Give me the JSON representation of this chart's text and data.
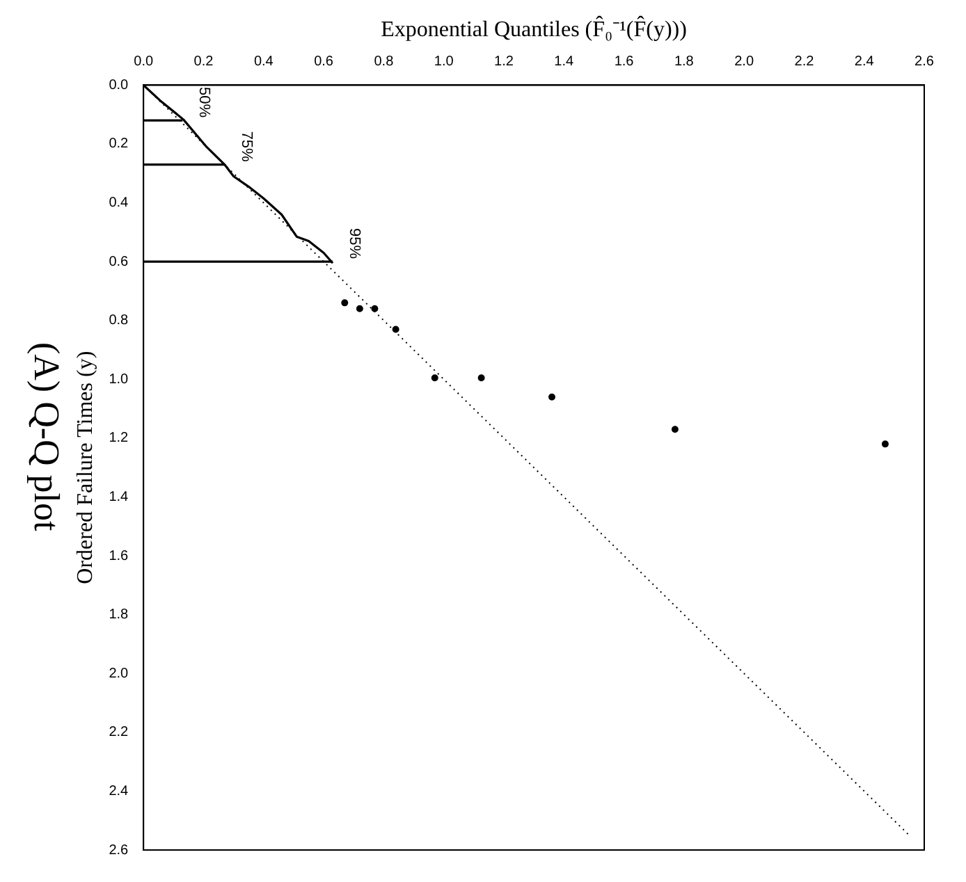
{
  "chart_data": {
    "type": "scatter",
    "title": "(A) Q-Q plot",
    "xlabel": "Exponential Quantiles (F̂₀⁻¹(F̂(y)))",
    "ylabel": "Ordered Failure Times (y)",
    "xlim": [
      0,
      2.6
    ],
    "xticks": [
      {
        "value": 0,
        "label": "0.0"
      },
      0.2,
      0.4,
      0.6,
      0.8,
      {
        "value": 1,
        "label": "1.0"
      },
      1.2,
      1.4,
      1.6,
      1.8,
      {
        "value": 2,
        "label": "2.0"
      },
      2.2,
      2.4,
      2.6
    ],
    "ylim": [
      2.6,
      0
    ],
    "yticks": [
      {
        "value": 0,
        "label": "0.0"
      },
      0.2,
      0.4,
      0.6,
      0.8,
      {
        "value": 1,
        "label": "1.0"
      },
      1.2,
      1.4,
      1.6,
      1.8,
      {
        "value": 2,
        "label": "2.0"
      },
      2.2,
      2.4,
      2.6
    ],
    "grid": false,
    "legend": false,
    "series": [
      {
        "type": "line",
        "color": "#000000",
        "line_style": "dotted",
        "marker": "none",
        "x": [
          0,
          2.55
        ],
        "values": [
          0,
          2.55
        ]
      },
      {
        "type": "line",
        "color": "#000000",
        "line_style": "solid",
        "marker": "none",
        "x": [
          0,
          0.13
        ],
        "values": [
          0.12,
          0.12
        ]
      },
      {
        "type": "line",
        "color": "#000000",
        "line_style": "solid",
        "marker": "none",
        "x": [
          0,
          0.27
        ],
        "values": [
          0.27,
          0.27
        ]
      },
      {
        "type": "line",
        "color": "#000000",
        "line_style": "solid",
        "marker": "none",
        "x": [
          0,
          0.63
        ],
        "values": [
          0.6,
          0.6
        ]
      },
      {
        "type": "line",
        "color": "#000000",
        "line_style": "solid",
        "marker": "none",
        "x": [
          0,
          0.055,
          0.133,
          0.21,
          0.27,
          0.3,
          0.35,
          0.4,
          0.46,
          0.51,
          0.55,
          0.6,
          0.63
        ],
        "values": [
          0,
          0.052,
          0.117,
          0.21,
          0.27,
          0.31,
          0.345,
          0.385,
          0.44,
          0.515,
          0.53,
          0.57,
          0.605
        ]
      },
      {
        "color": "#000000",
        "marker": "circle",
        "x": [
          0.67,
          0.72,
          0.77,
          0.84,
          0.97,
          1.125,
          1.36,
          1.77,
          2.47
        ],
        "values": [
          0.74,
          0.76,
          0.76,
          0.83,
          0.995,
          0.995,
          1.06,
          1.17,
          1.22
        ]
      }
    ],
    "annotations": [
      {
        "text": "50%",
        "x": 0.13,
        "y": 0.12
      },
      {
        "text": "75%",
        "x": 0.27,
        "y": 0.27
      },
      {
        "text": "95%",
        "x": 0.63,
        "y": 0.6
      }
    ]
  }
}
